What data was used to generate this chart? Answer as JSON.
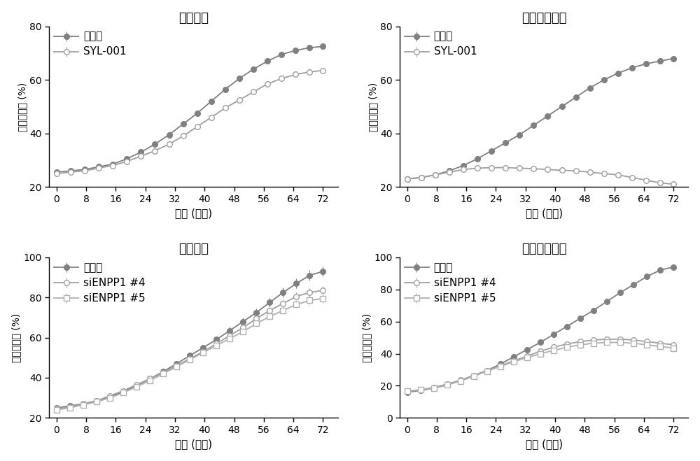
{
  "titles": [
    "肺癌细胞",
    "肺癌耒药细胞",
    "肺癌细胞",
    "肺癌耒药细胞"
  ],
  "xlabel": "时间 (小时)",
  "ylabel": "细胞汇合度 (%)",
  "legend1_1": "对照组",
  "legend1_2": "SYL-001",
  "legend2_1": "对照组",
  "legend2_2": "siENPP1 #4",
  "legend2_3": "siENPP1 #5",
  "x_ticks": [
    0,
    8,
    16,
    24,
    32,
    40,
    48,
    56,
    64,
    72
  ],
  "color_filled": "#808080",
  "color_open": "#a0a0a0",
  "color_square": "#b0b0b0",
  "tl_x": [
    0,
    3.8,
    7.6,
    11.4,
    15.2,
    19.0,
    22.8,
    26.6,
    30.4,
    34.2,
    38.0,
    41.8,
    45.6,
    49.4,
    53.2,
    57.0,
    60.8,
    64.6,
    68.4,
    72.0
  ],
  "tl_control_y": [
    25.5,
    26.0,
    26.5,
    27.5,
    28.5,
    30.5,
    33.0,
    36.0,
    39.5,
    43.5,
    47.5,
    52.0,
    56.5,
    60.5,
    64.0,
    67.0,
    69.5,
    71.0,
    72.0,
    72.5
  ],
  "tl_control_err": [
    0.3,
    0.3,
    0.3,
    0.4,
    0.4,
    0.5,
    0.6,
    0.7,
    0.8,
    0.9,
    1.0,
    1.0,
    0.9,
    0.9,
    0.8,
    0.8,
    0.7,
    0.7,
    0.7,
    0.7
  ],
  "tl_syl_y": [
    25.0,
    25.5,
    26.0,
    27.0,
    28.0,
    29.5,
    31.5,
    33.5,
    36.0,
    39.0,
    42.5,
    46.0,
    49.5,
    52.5,
    55.5,
    58.5,
    60.5,
    62.0,
    63.0,
    63.5
  ],
  "tl_syl_err": [
    0.3,
    0.3,
    0.3,
    0.3,
    0.4,
    0.4,
    0.4,
    0.5,
    0.5,
    0.5,
    0.6,
    0.6,
    0.6,
    0.6,
    0.6,
    0.6,
    0.6,
    0.6,
    0.6,
    0.6
  ],
  "tr_x": [
    0,
    3.8,
    7.6,
    11.4,
    15.2,
    19.0,
    22.8,
    26.6,
    30.4,
    34.2,
    38.0,
    41.8,
    45.6,
    49.4,
    53.2,
    57.0,
    60.8,
    64.6,
    68.4,
    72.0
  ],
  "tr_control_y": [
    23.0,
    23.5,
    24.5,
    26.0,
    28.0,
    30.5,
    33.5,
    36.5,
    39.5,
    43.0,
    46.5,
    50.0,
    53.5,
    57.0,
    60.0,
    62.5,
    64.5,
    66.0,
    67.0,
    68.0
  ],
  "tr_control_err": [
    0.3,
    0.4,
    0.5,
    0.6,
    0.7,
    0.8,
    0.9,
    1.0,
    0.9,
    0.8,
    0.8,
    0.7,
    0.7,
    0.7,
    0.6,
    0.5,
    0.5,
    0.5,
    0.5,
    0.5
  ],
  "tr_syl_y": [
    23.0,
    23.5,
    24.5,
    25.5,
    26.5,
    27.0,
    27.2,
    27.2,
    27.0,
    26.8,
    26.5,
    26.2,
    26.0,
    25.5,
    25.0,
    24.5,
    23.5,
    22.5,
    21.5,
    21.0
  ],
  "tr_syl_err": [
    0.3,
    0.3,
    0.3,
    0.3,
    0.3,
    0.3,
    0.3,
    0.3,
    0.3,
    0.2,
    0.2,
    0.2,
    0.2,
    0.2,
    0.2,
    0.2,
    0.2,
    0.2,
    0.2,
    0.2
  ],
  "bl_x": [
    0,
    3.6,
    7.2,
    10.8,
    14.4,
    18.0,
    21.6,
    25.2,
    28.8,
    32.4,
    36.0,
    39.6,
    43.2,
    46.8,
    50.4,
    54.0,
    57.6,
    61.2,
    64.8,
    68.4,
    72.0
  ],
  "bl_control_y": [
    25.0,
    26.0,
    27.0,
    28.5,
    30.5,
    33.0,
    36.0,
    39.5,
    43.0,
    47.0,
    51.0,
    55.0,
    59.0,
    63.5,
    68.0,
    72.5,
    77.5,
    82.5,
    87.0,
    91.0,
    93.0
  ],
  "bl_control_err": [
    0.4,
    0.5,
    0.6,
    0.7,
    0.8,
    0.9,
    1.0,
    1.1,
    1.2,
    1.3,
    1.4,
    1.5,
    1.6,
    1.8,
    1.9,
    2.0,
    2.2,
    2.4,
    2.5,
    2.5,
    2.5
  ],
  "bl_si4_y": [
    24.5,
    25.5,
    27.0,
    28.5,
    31.0,
    33.5,
    36.5,
    39.5,
    42.5,
    46.0,
    49.5,
    53.0,
    57.0,
    61.0,
    65.0,
    69.5,
    73.5,
    77.0,
    80.5,
    82.5,
    83.5
  ],
  "bl_si4_err": [
    0.4,
    0.5,
    0.6,
    0.7,
    0.8,
    0.9,
    1.0,
    1.1,
    1.2,
    1.3,
    1.3,
    1.4,
    1.5,
    1.5,
    1.6,
    1.7,
    1.8,
    1.9,
    2.0,
    2.0,
    2.0
  ],
  "bl_si5_y": [
    24.0,
    25.0,
    26.5,
    28.0,
    30.0,
    32.5,
    35.5,
    38.5,
    42.0,
    45.5,
    49.0,
    52.5,
    56.0,
    59.5,
    63.0,
    67.0,
    70.5,
    73.5,
    76.5,
    78.5,
    79.5
  ],
  "bl_si5_err": [
    0.4,
    0.5,
    0.5,
    0.6,
    0.7,
    0.8,
    0.9,
    1.0,
    1.0,
    1.1,
    1.2,
    1.2,
    1.3,
    1.4,
    1.4,
    1.5,
    1.6,
    1.6,
    1.7,
    1.8,
    1.9
  ],
  "br_x": [
    0,
    3.6,
    7.2,
    10.8,
    14.4,
    18.0,
    21.6,
    25.2,
    28.8,
    32.4,
    36.0,
    39.6,
    43.2,
    46.8,
    50.4,
    54.0,
    57.6,
    61.2,
    64.8,
    68.4,
    72.0
  ],
  "br_control_y": [
    16.0,
    17.0,
    18.5,
    20.5,
    23.0,
    26.0,
    29.5,
    33.5,
    38.0,
    42.5,
    47.0,
    52.0,
    57.0,
    62.0,
    67.0,
    72.5,
    78.0,
    83.0,
    88.0,
    92.0,
    94.0
  ],
  "br_control_err": [
    0.3,
    0.4,
    0.5,
    0.6,
    0.7,
    0.8,
    0.9,
    1.0,
    1.1,
    1.2,
    1.3,
    1.3,
    1.4,
    1.4,
    1.4,
    1.4,
    1.4,
    1.4,
    1.4,
    1.4,
    1.4
  ],
  "br_si4_y": [
    16.5,
    17.5,
    19.0,
    21.0,
    23.5,
    26.5,
    29.5,
    32.5,
    35.5,
    38.5,
    41.5,
    44.0,
    46.0,
    47.5,
    48.5,
    49.0,
    49.0,
    48.5,
    47.5,
    46.5,
    45.5
  ],
  "br_si4_err": [
    0.3,
    0.4,
    0.5,
    0.6,
    0.7,
    0.7,
    0.7,
    0.8,
    0.8,
    0.8,
    0.8,
    0.8,
    0.8,
    0.8,
    0.8,
    0.8,
    0.8,
    0.8,
    0.8,
    0.8,
    0.8
  ],
  "br_si5_y": [
    16.5,
    17.5,
    18.5,
    20.5,
    23.0,
    26.0,
    29.0,
    32.0,
    35.0,
    37.5,
    40.0,
    42.0,
    44.0,
    45.5,
    46.5,
    47.0,
    47.0,
    46.5,
    45.5,
    44.5,
    43.5
  ],
  "br_si5_err": [
    0.3,
    0.4,
    0.4,
    0.5,
    0.6,
    0.6,
    0.7,
    0.7,
    0.7,
    0.7,
    0.7,
    0.7,
    0.7,
    0.7,
    0.7,
    0.7,
    0.7,
    0.7,
    0.7,
    0.7,
    0.7
  ]
}
